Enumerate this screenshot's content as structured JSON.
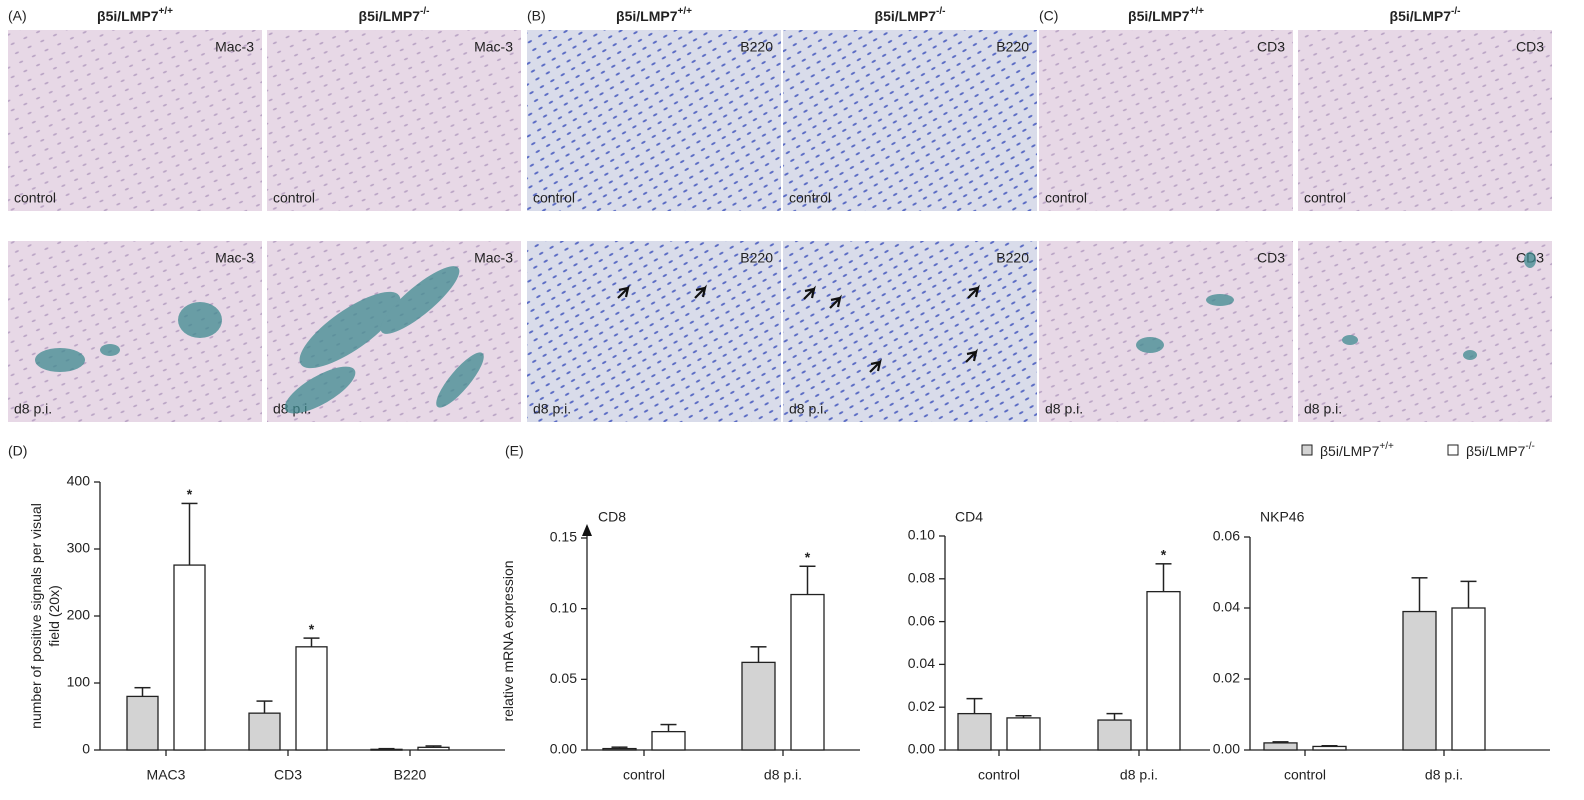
{
  "micrographs": {
    "sections": [
      {
        "label": "(A)",
        "stain": "Mac-3"
      },
      {
        "label": "(B)",
        "stain": "B220"
      },
      {
        "label": "(C)",
        "stain": "CD3"
      }
    ],
    "genotypes": [
      "β5i/LMP7+/+",
      "β5i/LMP7-/-"
    ],
    "conditions": [
      "control",
      "d8 p.i."
    ]
  },
  "chart_data": [
    {
      "type": "bar",
      "panel_label": "(D)",
      "ylabel": "number of positive signals per visual field (20x)",
      "categories": [
        "MAC3",
        "CD3",
        "B220"
      ],
      "series": [
        {
          "color": "#d3d3d3",
          "values": [
            80,
            55,
            1
          ],
          "errors": [
            13,
            18,
            1
          ]
        },
        {
          "color": "#ffffff",
          "values": [
            276,
            154,
            4
          ],
          "errors": [
            92,
            13,
            2
          ],
          "significance": [
            "*",
            "*",
            null
          ]
        }
      ],
      "ylim": [
        0,
        400
      ],
      "yticks": [
        0,
        100,
        200,
        300,
        400
      ]
    },
    {
      "type": "bar",
      "panel_label": "(E)",
      "title": "CD8",
      "ylabel": "relative mRNA expression",
      "categories": [
        "control",
        "d8 p.i."
      ],
      "series": [
        {
          "color": "#d3d3d3",
          "values": [
            0.001,
            0.062
          ],
          "errors": [
            0.001,
            0.011
          ]
        },
        {
          "color": "#ffffff",
          "values": [
            0.013,
            0.11
          ],
          "errors": [
            0.005,
            0.02
          ],
          "significance": [
            null,
            "*"
          ]
        }
      ],
      "ylim": [
        0,
        0.15
      ],
      "yticks": [
        {
          "value": 0,
          "label": "0.00"
        },
        {
          "value": 0.05,
          "label": "0.05"
        },
        {
          "value": 0.1,
          "label": "0.10"
        },
        {
          "value": 0.15,
          "label": "0.15"
        }
      ]
    },
    {
      "type": "bar",
      "title": "CD4",
      "categories": [
        "control",
        "d8 p.i."
      ],
      "series": [
        {
          "color": "#d3d3d3",
          "values": [
            0.017,
            0.014
          ],
          "errors": [
            0.007,
            0.003
          ]
        },
        {
          "color": "#ffffff",
          "values": [
            0.015,
            0.074
          ],
          "errors": [
            0.001,
            0.013
          ],
          "significance": [
            null,
            "*"
          ]
        }
      ],
      "ylim": [
        0,
        0.1
      ],
      "yticks": [
        {
          "value": 0,
          "label": "0.00"
        },
        {
          "value": 0.02,
          "label": "0.02"
        },
        {
          "value": 0.04,
          "label": "0.04"
        },
        {
          "value": 0.06,
          "label": "0.06"
        },
        {
          "value": 0.08,
          "label": "0.08"
        },
        {
          "value": 0.1,
          "label": "0.10"
        }
      ]
    },
    {
      "type": "bar",
      "title": "NKP46",
      "legend": "upper right",
      "categories": [
        "control",
        "d8 p.i."
      ],
      "series": [
        {
          "name": "β5i/LMP7+/+",
          "color": "#d3d3d3",
          "values": [
            0.002,
            0.039
          ],
          "errors": [
            0.0003,
            0.0095
          ]
        },
        {
          "name": "β5i/LMP7-/-",
          "color": "#ffffff",
          "values": [
            0.001,
            0.04
          ],
          "errors": [
            0.0002,
            0.0075
          ]
        }
      ],
      "ylim": [
        0,
        0.06
      ],
      "yticks": [
        {
          "value": 0,
          "label": "0.00"
        },
        {
          "value": 0.02,
          "label": "0.02"
        },
        {
          "value": 0.04,
          "label": "0.04"
        },
        {
          "value": 0.06,
          "label": "0.06"
        }
      ]
    }
  ]
}
